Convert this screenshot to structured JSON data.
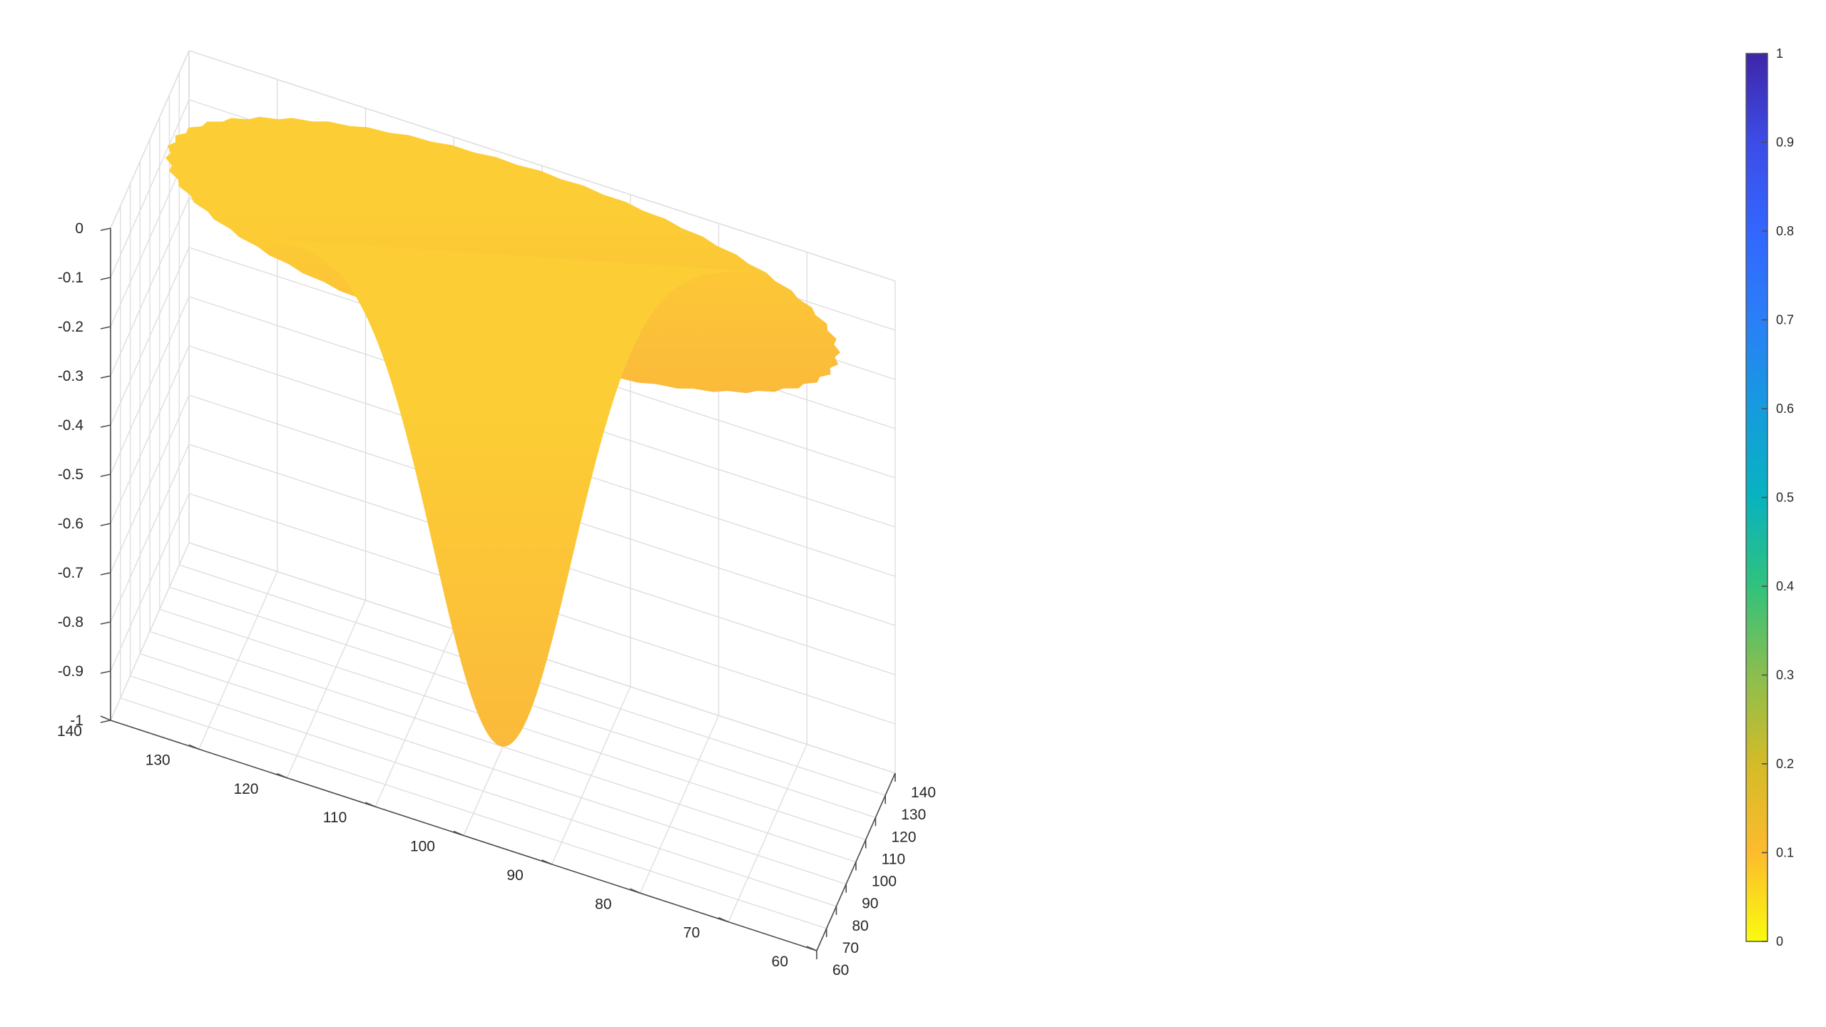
{
  "chart_data": {
    "type": "surface3d",
    "title": "",
    "xlabel": "",
    "ylabel": "",
    "zlabel": "",
    "xlim": [
      60,
      140
    ],
    "ylim": [
      60,
      140
    ],
    "zlim": [
      -1,
      0
    ],
    "x_ticks": [
      "60",
      "70",
      "80",
      "90",
      "100",
      "110",
      "120",
      "130",
      "140"
    ],
    "y_ticks": [
      "60",
      "70",
      "80",
      "90",
      "100",
      "110",
      "120",
      "130",
      "140"
    ],
    "z_ticks": [
      "0",
      "-0.1",
      "-0.2",
      "-0.3",
      "-0.4",
      "-0.5",
      "-0.6",
      "-0.7",
      "-0.8",
      "-0.9",
      "-1"
    ],
    "grid": true,
    "surface": {
      "function": "gaussian_well",
      "center": [
        100,
        100
      ],
      "depth": -1,
      "sigma": 10,
      "domain": "disk",
      "domain_radius": 38
    },
    "colorbar": {
      "location": "right",
      "limits": [
        0,
        1
      ],
      "ticks": [
        "0",
        "0.1",
        "0.2",
        "0.3",
        "0.4",
        "0.5",
        "0.6",
        "0.7",
        "0.8",
        "0.9",
        "1"
      ],
      "colormap": "parula"
    },
    "colors": {
      "surface_top": "#fccd34",
      "surface_bottom": "#fbba3b",
      "colorbar_stops": [
        "#f9fb0e",
        "#fdbb2d",
        "#d4bb28",
        "#8bbe4f",
        "#31c27c",
        "#08b3bf",
        "#169bdf",
        "#2a7ff7",
        "#3366ff",
        "#3d4ce8",
        "#3e26a8"
      ]
    }
  }
}
